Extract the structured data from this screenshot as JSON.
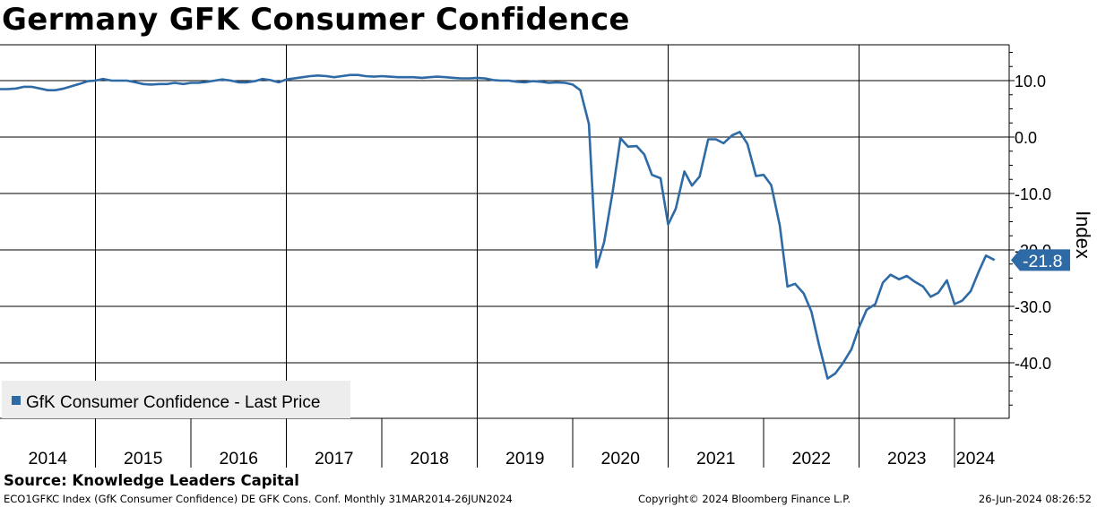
{
  "chart_data": {
    "type": "line",
    "title": "Germany GFK Consumer Confidence",
    "ylabel": "Index",
    "ylim": [
      -50,
      16
    ],
    "yticks": [
      10,
      0,
      -10,
      -20,
      -30,
      -40
    ],
    "ytick_labels": [
      "10.0",
      "0.0",
      "-10.0",
      "-20.0",
      "-30.0",
      "-40.0"
    ],
    "xlim": [
      2014.0,
      2024.75
    ],
    "x_tick_labels": [
      "2014",
      "2015",
      "2016",
      "2017",
      "2018",
      "2019",
      "2020",
      "2021",
      "2022",
      "2023",
      "2024"
    ],
    "grid": true,
    "legend_position": "bottom-left",
    "last_value_label": "-21.8",
    "series": [
      {
        "name": "GfK Consumer Confidence - Last Price",
        "color": "#2e6aa6",
        "points": [
          [
            2014.0,
            8.5
          ],
          [
            2014.08,
            8.5
          ],
          [
            2014.17,
            8.6
          ],
          [
            2014.25,
            8.9
          ],
          [
            2014.33,
            8.9
          ],
          [
            2014.42,
            8.6
          ],
          [
            2014.5,
            8.3
          ],
          [
            2014.58,
            8.3
          ],
          [
            2014.67,
            8.6
          ],
          [
            2014.75,
            9.0
          ],
          [
            2014.83,
            9.4
          ],
          [
            2014.92,
            9.9
          ],
          [
            2015.0,
            10.0
          ],
          [
            2015.08,
            10.3
          ],
          [
            2015.17,
            10.0
          ],
          [
            2015.25,
            10.0
          ],
          [
            2015.33,
            10.0
          ],
          [
            2015.42,
            9.7
          ],
          [
            2015.5,
            9.4
          ],
          [
            2015.58,
            9.3
          ],
          [
            2015.67,
            9.4
          ],
          [
            2015.75,
            9.4
          ],
          [
            2015.83,
            9.6
          ],
          [
            2015.92,
            9.4
          ],
          [
            2016.0,
            9.6
          ],
          [
            2016.08,
            9.6
          ],
          [
            2016.17,
            9.8
          ],
          [
            2016.25,
            10.0
          ],
          [
            2016.33,
            10.2
          ],
          [
            2016.42,
            10.0
          ],
          [
            2016.5,
            9.7
          ],
          [
            2016.58,
            9.7
          ],
          [
            2016.67,
            9.9
          ],
          [
            2016.75,
            10.3
          ],
          [
            2016.83,
            10.1
          ],
          [
            2016.92,
            9.7
          ],
          [
            2017.0,
            10.2
          ],
          [
            2017.08,
            10.4
          ],
          [
            2017.17,
            10.6
          ],
          [
            2017.25,
            10.8
          ],
          [
            2017.33,
            10.9
          ],
          [
            2017.42,
            10.8
          ],
          [
            2017.5,
            10.6
          ],
          [
            2017.58,
            10.8
          ],
          [
            2017.67,
            11.0
          ],
          [
            2017.75,
            11.0
          ],
          [
            2017.83,
            10.8
          ],
          [
            2017.92,
            10.7
          ],
          [
            2018.0,
            10.8
          ],
          [
            2018.08,
            10.7
          ],
          [
            2018.17,
            10.6
          ],
          [
            2018.25,
            10.6
          ],
          [
            2018.33,
            10.6
          ],
          [
            2018.42,
            10.5
          ],
          [
            2018.5,
            10.6
          ],
          [
            2018.58,
            10.7
          ],
          [
            2018.67,
            10.6
          ],
          [
            2018.75,
            10.5
          ],
          [
            2018.83,
            10.4
          ],
          [
            2018.92,
            10.4
          ],
          [
            2019.0,
            10.5
          ],
          [
            2019.08,
            10.4
          ],
          [
            2019.17,
            10.1
          ],
          [
            2019.25,
            10.0
          ],
          [
            2019.33,
            10.0
          ],
          [
            2019.42,
            9.8
          ],
          [
            2019.5,
            9.7
          ],
          [
            2019.58,
            9.9
          ],
          [
            2019.67,
            9.8
          ],
          [
            2019.75,
            9.6
          ],
          [
            2019.83,
            9.7
          ],
          [
            2019.92,
            9.6
          ],
          [
            2020.0,
            9.3
          ],
          [
            2020.08,
            8.3
          ],
          [
            2020.17,
            2.3
          ],
          [
            2020.25,
            -23.1
          ],
          [
            2020.33,
            -18.6
          ],
          [
            2020.42,
            -9.6
          ],
          [
            2020.5,
            -0.2
          ],
          [
            2020.58,
            -1.7
          ],
          [
            2020.67,
            -1.6
          ],
          [
            2020.75,
            -3.1
          ],
          [
            2020.83,
            -6.7
          ],
          [
            2020.92,
            -7.3
          ],
          [
            2021.0,
            -15.5
          ],
          [
            2021.08,
            -12.7
          ],
          [
            2021.17,
            -6.1
          ],
          [
            2021.25,
            -8.6
          ],
          [
            2021.33,
            -7.0
          ],
          [
            2021.42,
            -0.4
          ],
          [
            2021.5,
            -0.4
          ],
          [
            2021.58,
            -1.1
          ],
          [
            2021.67,
            0.3
          ],
          [
            2021.75,
            0.9
          ],
          [
            2021.83,
            -1.2
          ],
          [
            2021.92,
            -6.9
          ],
          [
            2022.0,
            -6.7
          ],
          [
            2022.08,
            -8.5
          ],
          [
            2022.17,
            -15.7
          ],
          [
            2022.25,
            -26.5
          ],
          [
            2022.33,
            -26.0
          ],
          [
            2022.42,
            -27.7
          ],
          [
            2022.5,
            -30.9
          ],
          [
            2022.58,
            -36.8
          ],
          [
            2022.67,
            -42.8
          ],
          [
            2022.75,
            -41.9
          ],
          [
            2022.83,
            -40.1
          ],
          [
            2022.92,
            -37.6
          ],
          [
            2023.0,
            -33.7
          ],
          [
            2023.08,
            -30.6
          ],
          [
            2023.17,
            -29.6
          ],
          [
            2023.25,
            -25.8
          ],
          [
            2023.33,
            -24.4
          ],
          [
            2023.42,
            -25.2
          ],
          [
            2023.5,
            -24.6
          ],
          [
            2023.58,
            -25.6
          ],
          [
            2023.67,
            -26.5
          ],
          [
            2023.75,
            -28.3
          ],
          [
            2023.83,
            -27.6
          ],
          [
            2023.92,
            -25.4
          ],
          [
            2024.0,
            -29.6
          ],
          [
            2024.08,
            -29.0
          ],
          [
            2024.17,
            -27.3
          ],
          [
            2024.25,
            -24.0
          ],
          [
            2024.33,
            -21.0
          ],
          [
            2024.42,
            -21.8
          ]
        ]
      }
    ]
  },
  "source": "Source: Knowledge Leaders Capital",
  "footer": {
    "left": "ECO1GFKC Index (GfK Consumer Confidence) DE GFK Cons. Conf.  Monthly 31MAR2014-26JUN2024",
    "middle": "Copyright© 2024 Bloomberg Finance L.P.",
    "right": "26-Jun-2024 08:26:52"
  }
}
